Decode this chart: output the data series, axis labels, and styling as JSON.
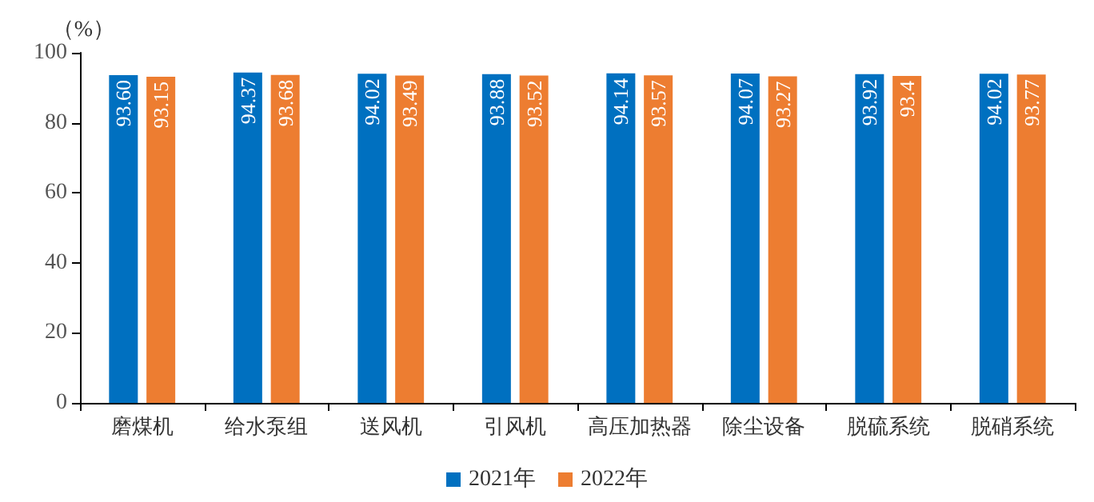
{
  "chart_data": {
    "type": "bar",
    "ylabel": "（%）",
    "categories": [
      "磨煤机",
      "给水泵组",
      "送风机",
      "引风机",
      "高压加热器",
      "除尘设备",
      "脱硫系统",
      "脱硝系统"
    ],
    "series": [
      {
        "name": "2021年",
        "color": "#0070c0",
        "values": [
          93.6,
          94.37,
          94.02,
          93.88,
          94.14,
          94.07,
          93.92,
          94.02
        ],
        "value_labels": [
          "93.60",
          "94.37",
          "94.02",
          "93.88",
          "94.14",
          "94.07",
          "93.92",
          "94.02"
        ]
      },
      {
        "name": "2022年",
        "color": "#ed7d31",
        "values": [
          93.15,
          93.68,
          93.49,
          93.52,
          93.57,
          93.27,
          93.4,
          93.77
        ],
        "value_labels": [
          "93.15",
          "93.68",
          "93.49",
          "93.52",
          "93.57",
          "93.27",
          "93.4",
          "93.77"
        ]
      }
    ],
    "ylim": [
      0,
      100
    ],
    "yticks": [
      0,
      20,
      40,
      60,
      80,
      100
    ],
    "grid": false,
    "legend": "bottom"
  }
}
